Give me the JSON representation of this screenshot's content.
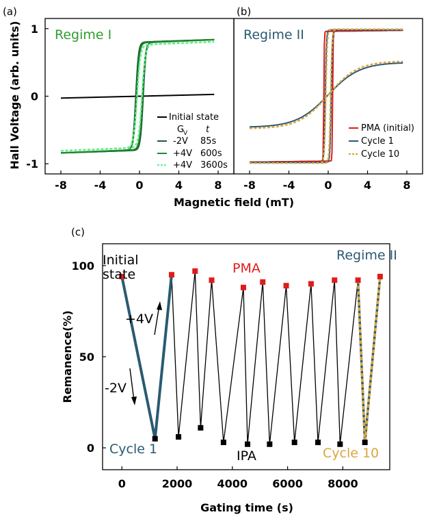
{
  "chart_data": [
    {
      "type": "line",
      "panel_label": "(a)",
      "regime": "Regime  I",
      "regime_color": "#2e9d2e",
      "ylabel": "Hall Voltage (arb. units)",
      "xlim": [
        -9.6,
        9.6
      ],
      "ylim": [
        -1.15,
        1.15
      ],
      "x_ticks": [
        -8,
        -4,
        0,
        4,
        8
      ],
      "y_ticks": [
        1,
        0,
        -1
      ],
      "legend_header": [
        "G",
        "V",
        "t"
      ],
      "series": [
        {
          "name": "Initial state",
          "color": "#000000",
          "kind": "linear",
          "slope": 0.0035
        },
        {
          "name": "-2V",
          "gating": "85s",
          "color": "#1e5a32",
          "kind": "loop",
          "ms": 0.8,
          "hc": 0.38,
          "w": 0.28,
          "sat_slope": 0.005
        },
        {
          "name": "+4V",
          "gating": "600s",
          "color": "#1f8a2e",
          "kind": "loop",
          "ms": 0.79,
          "hc": 0.3,
          "w": 0.3,
          "sat_slope": 0.006
        },
        {
          "name": "+4V",
          "gating": "3600s",
          "color": "#5ff08a",
          "kind": "loop",
          "dashed": true,
          "ms": 0.76,
          "hc": 0.25,
          "w": 0.35,
          "sat_slope": 0.006
        }
      ]
    },
    {
      "type": "line",
      "panel_label": "(b)",
      "regime": "Regime II",
      "regime_color": "#2a5a72",
      "xlim": [
        -9.6,
        9.6
      ],
      "ylim": [
        -1.15,
        1.15
      ],
      "x_ticks": [
        -8,
        -4,
        0,
        4,
        8
      ],
      "series": [
        {
          "name": "PMA (initial)",
          "color": "#e01b1b",
          "kind": "loop",
          "ms": 0.96,
          "hc": 0.45,
          "w": 0.05,
          "sat_slope": 0.002
        },
        {
          "name": "Cycle 1",
          "color": "#2a5a72",
          "kind": "loop_plus_soft",
          "ms": 0.98,
          "hc": 0.3,
          "w": 0.12,
          "soft_amp": 0.48,
          "soft_scale": 3.2
        },
        {
          "name": "Cycle 10",
          "color": "#d9a63e",
          "kind": "loop_plus_soft",
          "dashed": true,
          "ms": 0.99,
          "hc": 0.25,
          "w": 0.15,
          "soft_amp": 0.5,
          "soft_scale": 3.0
        }
      ]
    },
    {
      "type": "line",
      "panel_label": "(c)",
      "regime": "Regime II",
      "regime_color": "#2a5a72",
      "xlabel": "Gating time (s)",
      "ylabel": "Remanence(%)",
      "xlim": [
        -700,
        9700
      ],
      "ylim": [
        -12,
        112
      ],
      "x_ticks": [
        0,
        2000,
        4000,
        6000,
        8000
      ],
      "y_ticks": [
        100,
        50,
        0
      ],
      "pma_points": [
        [
          0,
          94
        ],
        [
          1800,
          95
        ],
        [
          2650,
          97
        ],
        [
          3250,
          92
        ],
        [
          4400,
          88
        ],
        [
          5100,
          91
        ],
        [
          5950,
          89
        ],
        [
          6850,
          90
        ],
        [
          7700,
          92
        ],
        [
          8550,
          92
        ],
        [
          9350,
          94
        ]
      ],
      "ipa_points": [
        [
          1200,
          5
        ],
        [
          2050,
          6
        ],
        [
          2850,
          11
        ],
        [
          3680,
          3
        ],
        [
          4550,
          2
        ],
        [
          5350,
          2
        ],
        [
          6250,
          3
        ],
        [
          7100,
          3
        ],
        [
          7900,
          2
        ],
        [
          8800,
          3
        ]
      ],
      "pma_color": "#e01b1b",
      "ipa_color": "#000000",
      "cycle1_color": "#2a5a72",
      "cycle10_color": "#d9a63e",
      "annotations": {
        "initial_state": "Initial state",
        "pma": "PMA",
        "ipa": "IPA",
        "cycle1": "Cycle 1",
        "cycle10": "Cycle 10",
        "plus4v": "+4V",
        "minus2v": "-2V"
      }
    }
  ],
  "shared": {
    "xlabel_top": "Magnetic field (mT)"
  }
}
